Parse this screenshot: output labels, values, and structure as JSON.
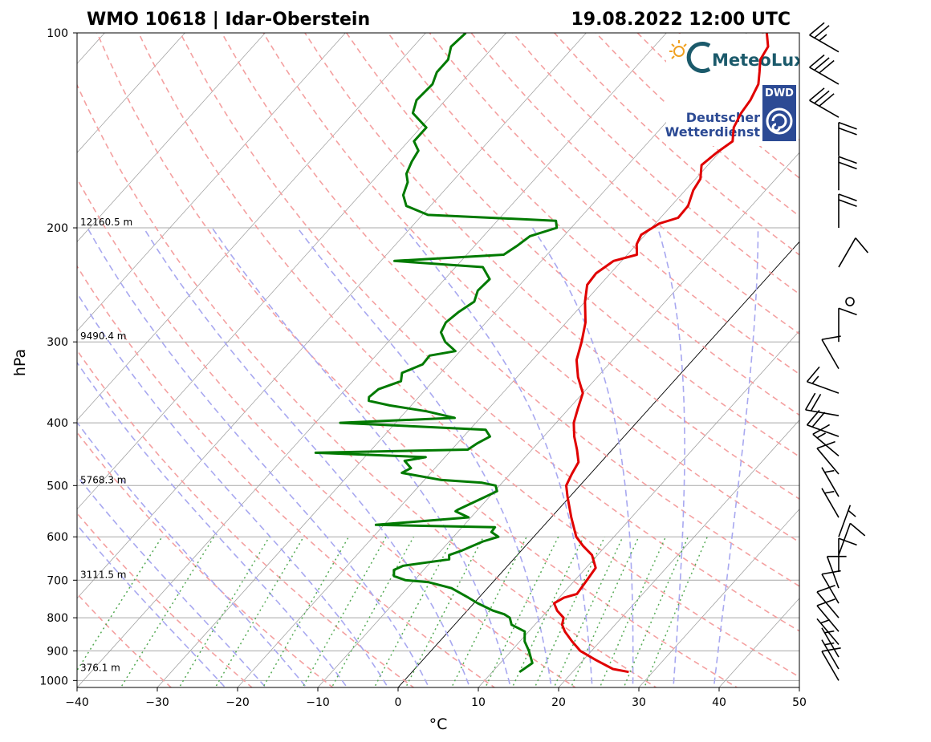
{
  "header": {
    "station": "WMO 10618 | Idar-Oberstein",
    "datetime": "19.08.2022 12:00 UTC"
  },
  "logos": {
    "meteolux": "MeteoLux",
    "dwd_badge": "DWD",
    "dwd_line1": "Deutscher",
    "dwd_line2": "Wetterdienst"
  },
  "colors": {
    "temperature": "#e00000",
    "dewpoint": "#007a00",
    "dry_adiabat": "#f4a0a0",
    "moist_adiabat": "#a8a8f0",
    "mixing_ratio": "#55aa55",
    "isotherm": "#888888"
  },
  "chart_data": {
    "type": "skew-t",
    "xlabel": "°C",
    "ylabel": "hPa",
    "xlim": [
      -40,
      50
    ],
    "ylim": [
      1025,
      100
    ],
    "x_ticks": [
      -40,
      -30,
      -20,
      -10,
      0,
      10,
      20,
      30,
      40,
      50
    ],
    "x_tick_labels": [
      "−40",
      "−30",
      "−20",
      "−10",
      "0",
      "10",
      "20",
      "30",
      "40",
      "50"
    ],
    "y_ticks": [
      100,
      200,
      300,
      400,
      500,
      600,
      700,
      800,
      900,
      1000
    ],
    "height_labels": [
      {
        "p": 200,
        "label": "12160.5 m"
      },
      {
        "p": 300,
        "label": "9490.4 m"
      },
      {
        "p": 500,
        "label": "5768.3 m"
      },
      {
        "p": 700,
        "label": "3111.5 m"
      },
      {
        "p": 975,
        "label": "376.1 m"
      }
    ],
    "series": [
      {
        "name": "temperature",
        "points": [
          [
            970,
            27.0
          ],
          [
            960,
            24.7
          ],
          [
            930,
            21.6
          ],
          [
            900,
            18.6
          ],
          [
            870,
            16.5
          ],
          [
            840,
            14.5
          ],
          [
            820,
            13.4
          ],
          [
            800,
            12.8
          ],
          [
            780,
            11.2
          ],
          [
            760,
            10.0
          ],
          [
            745,
            10.6
          ],
          [
            735,
            11.8
          ],
          [
            700,
            11.5
          ],
          [
            670,
            11.2
          ],
          [
            640,
            9.3
          ],
          [
            620,
            7.2
          ],
          [
            600,
            5.3
          ],
          [
            560,
            2.5
          ],
          [
            520,
            -0.3
          ],
          [
            500,
            -1.7
          ],
          [
            480,
            -2.3
          ],
          [
            460,
            -2.8
          ],
          [
            440,
            -4.4
          ],
          [
            420,
            -6.2
          ],
          [
            400,
            -7.8
          ],
          [
            380,
            -8.9
          ],
          [
            360,
            -10.0
          ],
          [
            340,
            -12.4
          ],
          [
            320,
            -14.5
          ],
          [
            300,
            -15.9
          ],
          [
            280,
            -17.6
          ],
          [
            260,
            -20.0
          ],
          [
            245,
            -21.6
          ],
          [
            235,
            -21.8
          ],
          [
            225,
            -21.0
          ],
          [
            220,
            -18.8
          ],
          [
            212,
            -20.0
          ],
          [
            205,
            -20.5
          ],
          [
            197,
            -19.5
          ],
          [
            193,
            -17.8
          ],
          [
            185,
            -17.9
          ],
          [
            175,
            -19.0
          ],
          [
            168,
            -19.4
          ],
          [
            160,
            -20.8
          ],
          [
            153,
            -20.3
          ],
          [
            147,
            -19.6
          ],
          [
            140,
            -21.0
          ],
          [
            133,
            -21.7
          ],
          [
            127,
            -22.0
          ],
          [
            120,
            -22.8
          ],
          [
            115,
            -24.0
          ],
          [
            110,
            -25.3
          ],
          [
            105,
            -25.8
          ],
          [
            100,
            -27.5
          ]
        ]
      },
      {
        "name": "dewpoint",
        "points": [
          [
            970,
            13.4
          ],
          [
            940,
            14.0
          ],
          [
            900,
            12.2
          ],
          [
            870,
            10.6
          ],
          [
            840,
            9.5
          ],
          [
            820,
            7.1
          ],
          [
            800,
            6.1
          ],
          [
            790,
            5.0
          ],
          [
            780,
            3.2
          ],
          [
            760,
            0.5
          ],
          [
            745,
            -1.3
          ],
          [
            720,
            -4.5
          ],
          [
            705,
            -8.0
          ],
          [
            700,
            -11.1
          ],
          [
            690,
            -13.0
          ],
          [
            675,
            -13.7
          ],
          [
            665,
            -13.0
          ],
          [
            650,
            -8.0
          ],
          [
            640,
            -8.5
          ],
          [
            630,
            -7.4
          ],
          [
            610,
            -5.8
          ],
          [
            600,
            -4.4
          ],
          [
            590,
            -5.8
          ],
          [
            580,
            -5.9
          ],
          [
            575,
            -21.0
          ],
          [
            560,
            -10.3
          ],
          [
            548,
            -12.6
          ],
          [
            545,
            -12.5
          ],
          [
            520,
            -10.5
          ],
          [
            510,
            -9.7
          ],
          [
            500,
            -10.5
          ],
          [
            495,
            -12.5
          ],
          [
            490,
            -18.0
          ],
          [
            478,
            -23.6
          ],
          [
            470,
            -23.0
          ],
          [
            458,
            -24.6
          ],
          [
            452,
            -22.4
          ],
          [
            445,
            -36.6
          ],
          [
            440,
            -18.0
          ],
          [
            430,
            -17.5
          ],
          [
            420,
            -16.7
          ],
          [
            410,
            -18.0
          ],
          [
            400,
            -36.9
          ],
          [
            393,
            -23.2
          ],
          [
            384,
            -27.4
          ],
          [
            376,
            -32.7
          ],
          [
            370,
            -35.8
          ],
          [
            365,
            -36.2
          ],
          [
            355,
            -35.9
          ],
          [
            345,
            -34.0
          ],
          [
            335,
            -34.8
          ],
          [
            325,
            -33.2
          ],
          [
            315,
            -33.3
          ],
          [
            310,
            -30.6
          ],
          [
            300,
            -32.9
          ],
          [
            290,
            -34.5
          ],
          [
            280,
            -35.0
          ],
          [
            270,
            -34.6
          ],
          [
            260,
            -33.8
          ],
          [
            250,
            -34.6
          ],
          [
            240,
            -34.4
          ],
          [
            230,
            -36.6
          ],
          [
            225,
            -48.3
          ],
          [
            220,
            -35.4
          ],
          [
            213,
            -34.7
          ],
          [
            206,
            -34.2
          ],
          [
            200,
            -31.8
          ],
          [
            195,
            -32.7
          ],
          [
            191,
            -49.3
          ],
          [
            185,
            -53.0
          ],
          [
            178,
            -54.6
          ],
          [
            170,
            -55.5
          ],
          [
            165,
            -56.6
          ],
          [
            158,
            -57.3
          ],
          [
            152,
            -57.7
          ],
          [
            147,
            -59.3
          ],
          [
            140,
            -59.3
          ],
          [
            133,
            -62.6
          ],
          [
            127,
            -63.6
          ],
          [
            120,
            -63.4
          ],
          [
            115,
            -64.2
          ],
          [
            110,
            -64.2
          ],
          [
            105,
            -65.3
          ],
          [
            100,
            -65.0
          ]
        ]
      }
    ],
    "wind_profile": [
      {
        "p": 1000,
        "dir": 330,
        "kt": 10
      },
      {
        "p": 960,
        "dir": 330,
        "kt": 5
      },
      {
        "p": 920,
        "dir": 330,
        "kt": 5
      },
      {
        "p": 880,
        "dir": 320,
        "kt": 5
      },
      {
        "p": 840,
        "dir": 320,
        "kt": 10
      },
      {
        "p": 800,
        "dir": 320,
        "kt": 10
      },
      {
        "p": 760,
        "dir": 330,
        "kt": 10
      },
      {
        "p": 720,
        "dir": 340,
        "kt": 10
      },
      {
        "p": 680,
        "dir": 0,
        "kt": 10
      },
      {
        "p": 640,
        "dir": 20,
        "kt": 10
      },
      {
        "p": 600,
        "dir": 20,
        "kt": 5
      },
      {
        "p": 560,
        "dir": 330,
        "kt": 5
      },
      {
        "p": 520,
        "dir": 330,
        "kt": 5
      },
      {
        "p": 480,
        "dir": 320,
        "kt": 10
      },
      {
        "p": 450,
        "dir": 310,
        "kt": 15
      },
      {
        "p": 420,
        "dir": 290,
        "kt": 20
      },
      {
        "p": 390,
        "dir": 280,
        "kt": 20
      },
      {
        "p": 360,
        "dir": 290,
        "kt": 15
      },
      {
        "p": 330,
        "dir": 330,
        "kt": 10
      },
      {
        "p": 300,
        "dir": 0,
        "kt": 10
      },
      {
        "p": 260,
        "dir": 0,
        "kt": 0
      },
      {
        "p": 230,
        "dir": 30,
        "kt": 10
      },
      {
        "p": 200,
        "dir": 0,
        "kt": 20
      },
      {
        "p": 175,
        "dir": 0,
        "kt": 20
      },
      {
        "p": 155,
        "dir": 0,
        "kt": 20
      },
      {
        "p": 135,
        "dir": 300,
        "kt": 30
      },
      {
        "p": 120,
        "dir": 300,
        "kt": 30
      },
      {
        "p": 107,
        "dir": 300,
        "kt": 25
      }
    ]
  }
}
